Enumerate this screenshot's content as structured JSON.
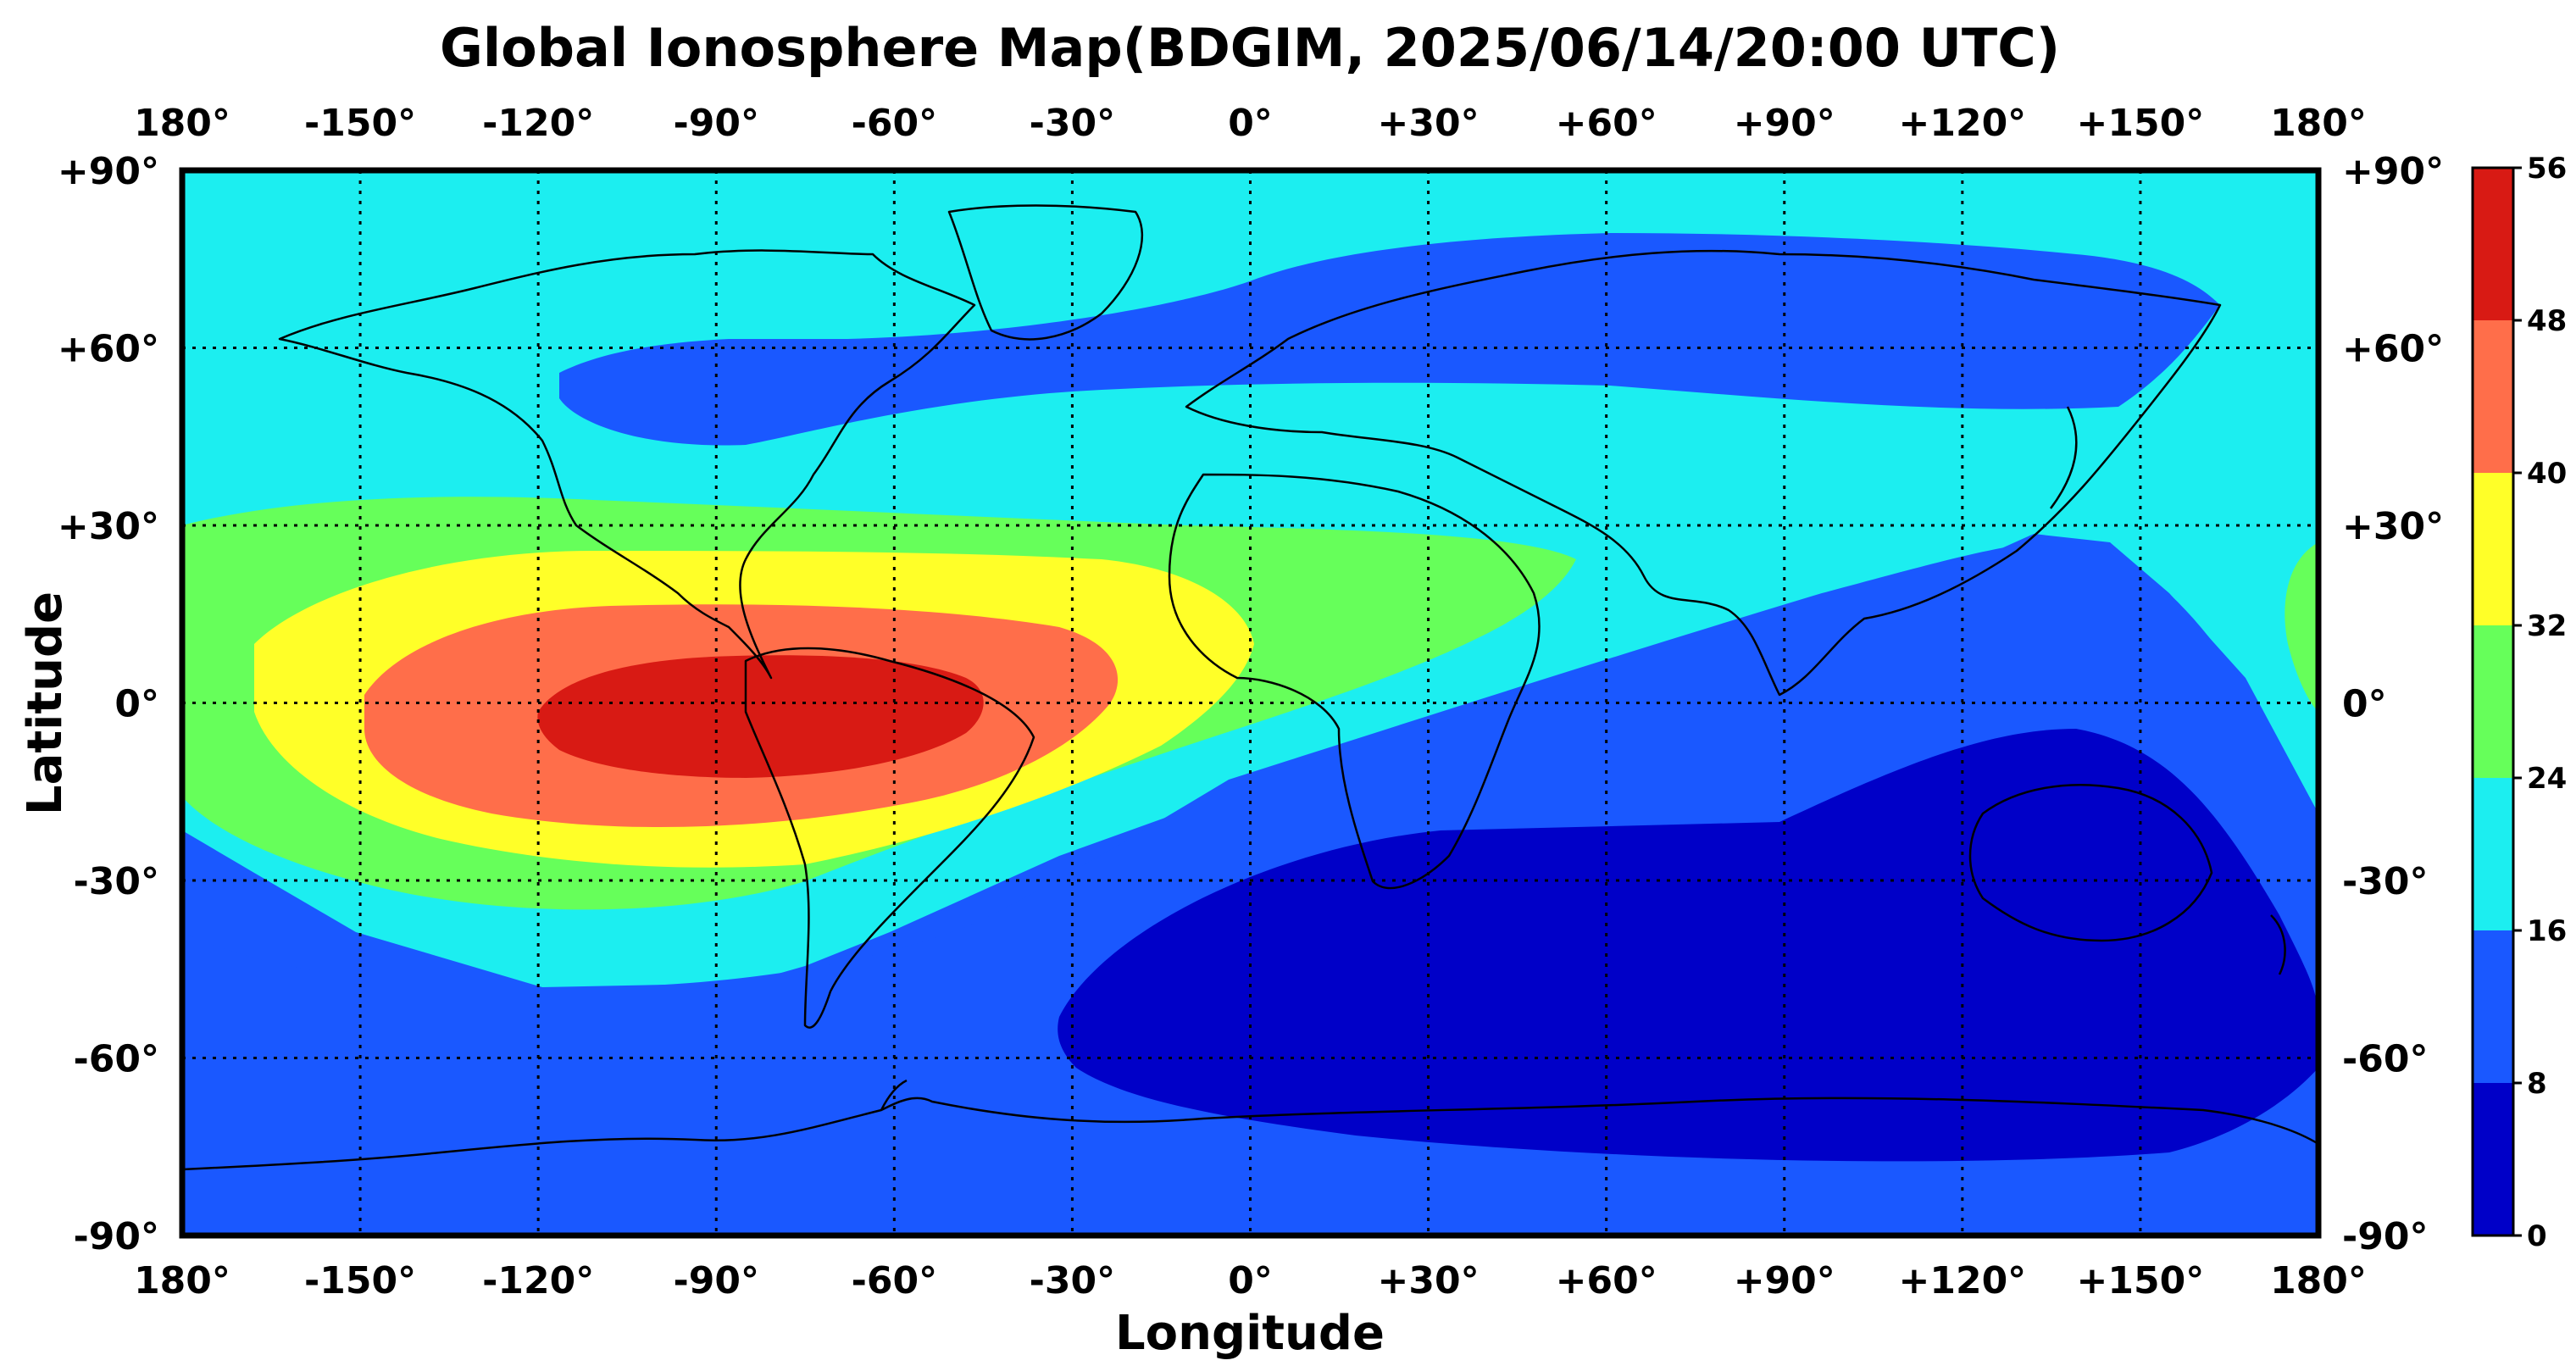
{
  "title": "Global Ionosphere Map(BDGIM, 2025/06/14/20:00 UTC)",
  "xlabel": "Longitude",
  "ylabel": "Latitude",
  "lon_ticks": [
    "180°",
    "-150°",
    "-120°",
    "-90°",
    "-60°",
    "-30°",
    "0°",
    "+30°",
    "+60°",
    "+90°",
    "+120°",
    "+150°",
    "180°"
  ],
  "lat_ticks": [
    "+90°",
    "+60°",
    "+30°",
    "0°",
    "-30°",
    "-60°",
    "-90°"
  ],
  "colorbar": {
    "ticks": [
      "56",
      "48",
      "40",
      "32",
      "24",
      "16",
      "8",
      "0"
    ],
    "bins": [
      {
        "min": 0,
        "max": 8,
        "color": "#0000c8"
      },
      {
        "min": 8,
        "max": 16,
        "color": "#1a58ff"
      },
      {
        "min": 16,
        "max": 24,
        "color": "#1ceef0"
      },
      {
        "min": 24,
        "max": 32,
        "color": "#66ff5a"
      },
      {
        "min": 32,
        "max": 40,
        "color": "#ffff28"
      },
      {
        "min": 40,
        "max": 48,
        "color": "#ff6e4a"
      },
      {
        "min": 48,
        "max": 56,
        "color": "#d81a14"
      }
    ]
  },
  "chart_data": {
    "type": "heatmap",
    "title": "Global Ionosphere Map(BDGIM, 2025/06/14/20:00 UTC)",
    "xlabel": "Longitude",
    "ylabel": "Latitude",
    "xlim": [
      -180,
      180
    ],
    "ylim": [
      -90,
      90
    ],
    "x_ticks": [
      -180,
      -150,
      -120,
      -90,
      -60,
      -30,
      0,
      30,
      60,
      90,
      120,
      150,
      180
    ],
    "y_ticks": [
      90,
      60,
      30,
      0,
      -30,
      -60,
      -90
    ],
    "grid": "dotted",
    "value_range": [
      0,
      56
    ],
    "levels": [
      0,
      8,
      16,
      24,
      32,
      40,
      48,
      56
    ],
    "features": [
      {
        "region": "equatorial crest",
        "lon_range": [
          -110,
          -45
        ],
        "lat_range": [
          -15,
          10
        ],
        "level_range": [
          48,
          56
        ]
      },
      {
        "region": "crest ring",
        "lon_range": [
          -135,
          -25
        ],
        "lat_range": [
          -22,
          17
        ],
        "level_range": [
          40,
          48
        ]
      },
      {
        "region": "crest ring",
        "lon_range": [
          -165,
          0
        ],
        "lat_range": [
          -30,
          22
        ],
        "level_range": [
          32,
          40
        ]
      },
      {
        "region": "crest ring",
        "lon_range": [
          -180,
          55
        ],
        "lat_range": [
          -40,
          34
        ],
        "level_range": [
          24,
          32
        ]
      },
      {
        "region": "southern ocean minimum",
        "lon_range": [
          -30,
          180
        ],
        "lat_range": [
          -72,
          -5
        ],
        "level_range": [
          0,
          8
        ]
      },
      {
        "region": "northern band",
        "lon_range": [
          -120,
          180
        ],
        "lat_range": [
          42,
          78
        ],
        "level_range": [
          8,
          16
        ]
      },
      {
        "region": "polar south",
        "lon_range": [
          -180,
          180
        ],
        "lat_range": [
          -90,
          -60
        ],
        "level_range": [
          8,
          16
        ]
      }
    ]
  }
}
